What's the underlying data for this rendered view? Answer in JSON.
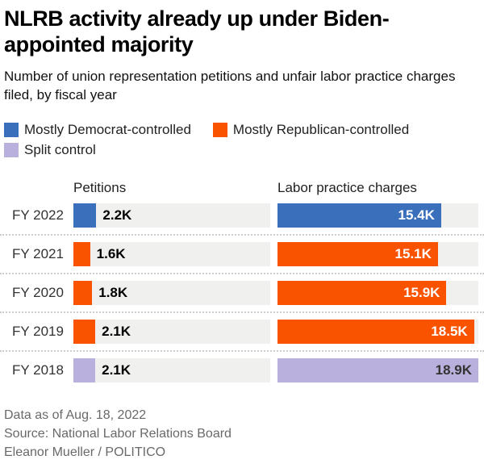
{
  "header": {
    "title": "NLRB activity already up under Biden-appointed majority",
    "subtitle": "Number of union representation petitions and unfair labor practice charges filed, by fiscal year"
  },
  "legend": {
    "items": [
      {
        "label": "Mostly Democrat-controlled",
        "color": "#3a70bb",
        "key": "dem"
      },
      {
        "label": "Mostly Republican-controlled",
        "color": "#fa5300",
        "key": "rep"
      },
      {
        "label": "Split control",
        "color": "#bab0dd",
        "key": "split"
      }
    ]
  },
  "chart_data": {
    "type": "bar",
    "orientation": "horizontal",
    "title": "NLRB activity already up under Biden-appointed majority",
    "subtitle": "Number of union representation petitions and unfair labor practice charges filed, by fiscal year",
    "categories": [
      "FY 2022",
      "FY 2021",
      "FY 2020",
      "FY 2019",
      "FY 2018"
    ],
    "control_by_year": [
      "dem",
      "rep",
      "rep",
      "rep",
      "split"
    ],
    "control_colors": {
      "dem": "#3a70bb",
      "rep": "#fa5300",
      "split": "#bab0dd"
    },
    "series": [
      {
        "name": "Petitions",
        "values": [
          2200,
          1600,
          1800,
          2100,
          2100
        ],
        "labels": [
          "2.2K",
          "1.6K",
          "1.8K",
          "2.1K",
          "2.1K"
        ]
      },
      {
        "name": "Labor practice charges",
        "values": [
          15400,
          15100,
          15900,
          18500,
          18900
        ],
        "labels": [
          "15.4K",
          "15.1K",
          "15.9K",
          "18.5K",
          "18.9K"
        ]
      }
    ],
    "scale_max": 18900,
    "track_color": "#f0f0ef",
    "inside_label_light": "#ffffff",
    "inside_label_dark": "#333333",
    "legend_position": "top",
    "grid": false
  },
  "columns": {
    "petitions_header": "Petitions",
    "charges_header": "Labor practice charges"
  },
  "footer": {
    "line1": "Data as of Aug. 18, 2022",
    "line2": "Source: National Labor Relations Board",
    "line3": "Eleanor Mueller / POLITICO"
  }
}
